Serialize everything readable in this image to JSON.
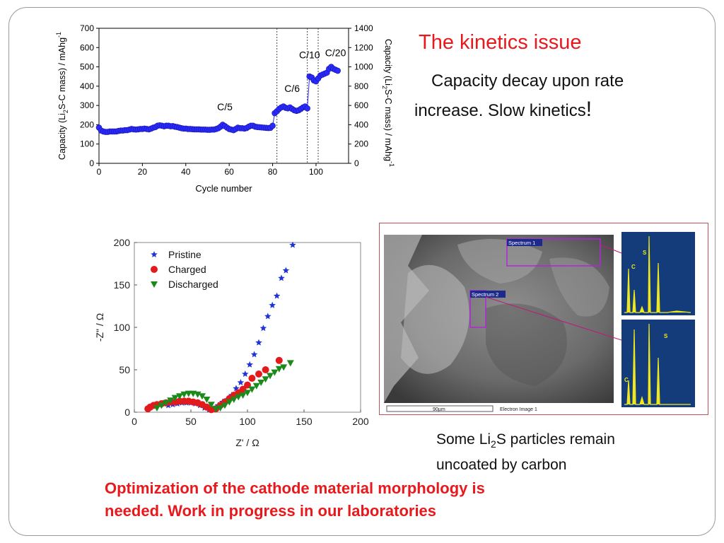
{
  "slide": {
    "title": "The kinetics issue",
    "subtitle_line1": "Capacity decay upon rate",
    "subtitle_line2": "increase. Slow kinetics",
    "subtitle_bang": "!",
    "caption_pre": "Some Li",
    "caption_sub": "2",
    "caption_post": "S particles remain",
    "caption_line2": "uncoated  by carbon",
    "bottom_line1": "Optimization of the cathode material morphology is",
    "bottom_line2": "needed. Work in progress in our laboratories",
    "colors": {
      "title": "#e8191c",
      "bottom": "#e8191c",
      "frame": "#9a9a9a"
    }
  },
  "sem": {
    "spectrum1_label": "Spectrum 1",
    "spectrum2_label": "Spectrum 2",
    "scale_label": "90µm",
    "image_label": "Electron Image 1",
    "edx_top_labels": [
      "C",
      "S"
    ],
    "edx_bottom_labels": [
      "C",
      "S"
    ]
  },
  "chart_data": [
    {
      "type": "scatter",
      "xlabel": "Cycle number",
      "ylabel_left_pre": "Capacity (Li",
      "ylabel_left_sub": "2",
      "ylabel_left_post": "S-C mass) / mAhg",
      "ylabel_left_sup": "-1",
      "ylabel_right_pre": "Capacity (Li",
      "ylabel_right_sub": "2",
      "ylabel_right_post": "S-C mass) / mAhg",
      "ylabel_right_sup": "-1",
      "xlim": [
        0,
        115
      ],
      "ylim": [
        0,
        700
      ],
      "y2lim": [
        0,
        1400
      ],
      "xticks": [
        0,
        20,
        40,
        60,
        80,
        100
      ],
      "yticks": [
        0,
        100,
        200,
        300,
        400,
        500,
        600,
        700
      ],
      "y2ticks": [
        0,
        200,
        400,
        600,
        800,
        1000,
        1200,
        1400
      ],
      "vlines": [
        82,
        96,
        101
      ],
      "annotations": [
        {
          "text": "C/5",
          "x": 58,
          "y": 275
        },
        {
          "text": "C/6",
          "x": 89,
          "y": 370
        },
        {
          "text": "C/10",
          "x": 97,
          "y": 545
        },
        {
          "text": "C/20",
          "x": 109,
          "y": 555
        }
      ],
      "marker_color": "#2a2aff",
      "series": [
        {
          "x": [
            0,
            1,
            2,
            3,
            4,
            5,
            6,
            7,
            8,
            9,
            10,
            11,
            12,
            13,
            14,
            15,
            16,
            17,
            18,
            19,
            20,
            21,
            22,
            23,
            24,
            25,
            26,
            27,
            28,
            29,
            30,
            31,
            32,
            33,
            34,
            35,
            36,
            37,
            38,
            39,
            40,
            41,
            42,
            43,
            44,
            45,
            46,
            47,
            48,
            49,
            50,
            51,
            52,
            53,
            54,
            55,
            56,
            57,
            58,
            59,
            60,
            61,
            62,
            63,
            64,
            65,
            66,
            67,
            68,
            69,
            70,
            71,
            72,
            73,
            74,
            75,
            76,
            77,
            78,
            79,
            80,
            81,
            82,
            83,
            84,
            85,
            86,
            87,
            88,
            89,
            90,
            91,
            92,
            93,
            94,
            95,
            96,
            97,
            98,
            99,
            100,
            101,
            102,
            103,
            104,
            105,
            106,
            107,
            108,
            109,
            110
          ],
          "y": [
            185,
            170,
            165,
            163,
            163,
            165,
            165,
            165,
            165,
            168,
            170,
            170,
            172,
            172,
            175,
            178,
            176,
            175,
            176,
            178,
            178,
            180,
            178,
            176,
            180,
            185,
            188,
            195,
            197,
            195,
            192,
            195,
            195,
            192,
            193,
            190,
            188,
            185,
            182,
            180,
            180,
            178,
            178,
            177,
            176,
            176,
            176,
            175,
            175,
            175,
            174,
            174,
            175,
            175,
            178,
            182,
            190,
            200,
            193,
            185,
            178,
            175,
            172,
            178,
            185,
            182,
            182,
            180,
            183,
            190,
            195,
            195,
            190,
            188,
            187,
            186,
            185,
            184,
            183,
            184,
            195,
            260,
            270,
            282,
            290,
            295,
            288,
            285,
            290,
            282,
            275,
            272,
            275,
            282,
            290,
            295,
            285,
            450,
            445,
            430,
            425,
            440,
            455,
            460,
            465,
            470,
            490,
            500,
            490,
            485,
            480
          ]
        }
      ]
    },
    {
      "type": "scatter",
      "xlabel": "Z' / Ω",
      "ylabel": "-Z\" / Ω",
      "xlim": [
        0,
        200
      ],
      "ylim": [
        0,
        200
      ],
      "xticks": [
        0,
        50,
        100,
        150,
        200
      ],
      "yticks": [
        0,
        50,
        100,
        150,
        200
      ],
      "legend_position": "top-left",
      "series": [
        {
          "name": "Pristine",
          "marker": "star",
          "color": "#1f33d6",
          "x": [
            30,
            34,
            38,
            42,
            46,
            50,
            54,
            58,
            62,
            66,
            70,
            74,
            78,
            82,
            86,
            90,
            94,
            98,
            102,
            106,
            110,
            114,
            118,
            122,
            126,
            130,
            134,
            140
          ],
          "y": [
            8,
            9,
            10,
            11,
            11,
            11,
            10,
            8,
            5,
            3,
            4,
            8,
            12,
            15,
            20,
            28,
            35,
            45,
            56,
            68,
            82,
            99,
            113,
            126,
            137,
            158,
            167,
            197
          ]
        },
        {
          "name": "Charged",
          "marker": "circle",
          "color": "#e31a1c",
          "x": [
            12,
            14,
            17,
            20,
            24,
            28,
            32,
            36,
            40,
            44,
            48,
            52,
            56,
            60,
            64,
            68,
            72,
            76,
            80,
            84,
            88,
            92,
            96,
            100,
            104,
            110,
            116,
            128
          ],
          "y": [
            4,
            6,
            8,
            9,
            10,
            11,
            12,
            12,
            13,
            13,
            13,
            12,
            11,
            9,
            6,
            3,
            4,
            8,
            12,
            16,
            20,
            23,
            27,
            32,
            40,
            45,
            50,
            61
          ]
        },
        {
          "name": "Discharged",
          "marker": "triangle-down",
          "color": "#1a8a1a",
          "x": [
            20,
            24,
            28,
            32,
            36,
            40,
            44,
            48,
            52,
            56,
            60,
            64,
            68,
            72,
            76,
            80,
            84,
            88,
            92,
            96,
            100,
            104,
            108,
            112,
            116,
            120,
            124,
            128,
            132,
            138
          ],
          "y": [
            5,
            8,
            11,
            14,
            17,
            19,
            21,
            22,
            22,
            21,
            19,
            15,
            9,
            4,
            5,
            8,
            12,
            15,
            18,
            20,
            23,
            27,
            31,
            35,
            39,
            43,
            47,
            51,
            53,
            58
          ]
        }
      ]
    }
  ]
}
